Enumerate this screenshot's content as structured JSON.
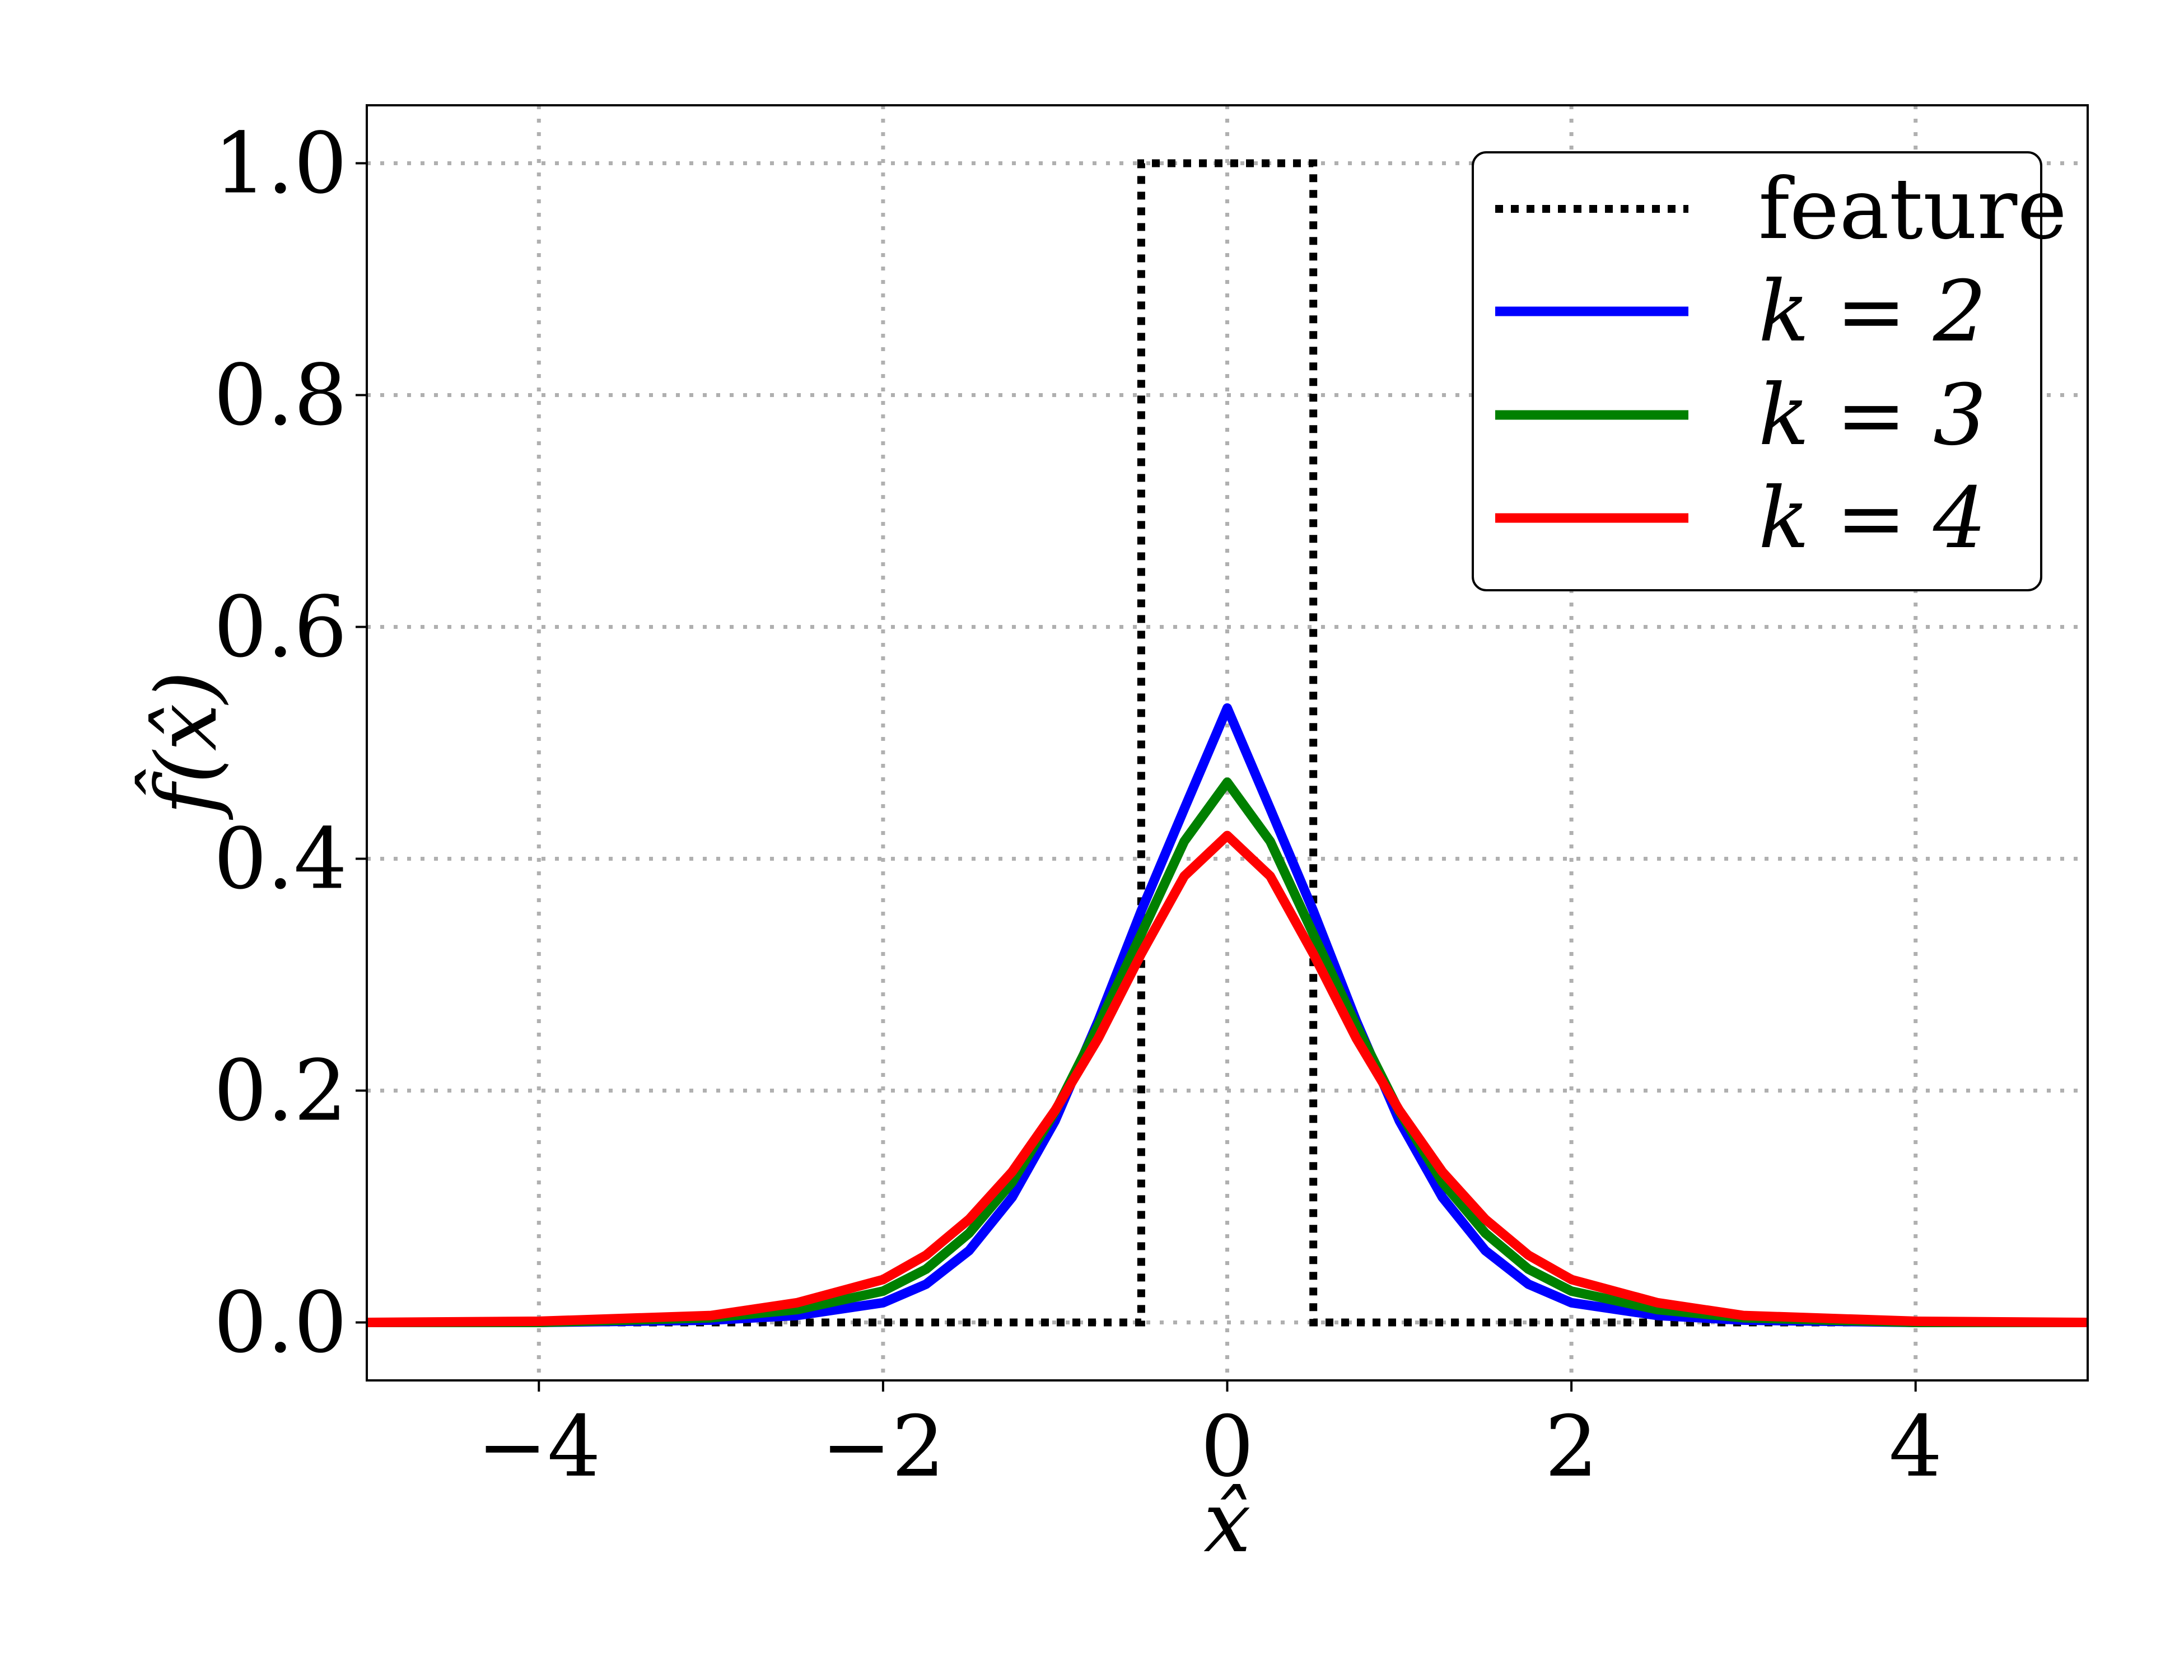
{
  "chart_data": {
    "type": "line",
    "xlabel": "x̂",
    "ylabel": "f̂(x̂)",
    "xlim": [
      -5,
      5
    ],
    "ylim": [
      -0.05,
      1.05
    ],
    "xticks": [
      -4,
      -2,
      0,
      2,
      4
    ],
    "xtick_labels": [
      "−4",
      "−2",
      "0",
      "2",
      "4"
    ],
    "yticks": [
      0.0,
      0.2,
      0.4,
      0.6,
      0.8,
      1.0
    ],
    "ytick_labels": [
      "0.0",
      "0.2",
      "0.4",
      "0.6",
      "0.8",
      "1.0"
    ],
    "grid": true,
    "legend_position": "top-right",
    "series": [
      {
        "name": "feature",
        "style": "dotted",
        "color": "#000000",
        "x": [
          -5.0,
          -0.5,
          -0.5,
          0.5,
          0.5,
          5.0
        ],
        "y": [
          0.0,
          0.0,
          1.0,
          1.0,
          0.0,
          0.0
        ]
      },
      {
        "name": "k = 2",
        "legend_var": "k",
        "legend_value": "2",
        "style": "solid",
        "color": "#0000ff",
        "x": [
          -5.0,
          -4.0,
          -3.0,
          -2.5,
          -2.0,
          -1.75,
          -1.5,
          -1.25,
          -1.0,
          -0.75,
          -0.5,
          -0.25,
          0.0,
          0.25,
          0.5,
          0.75,
          1.0,
          1.25,
          1.5,
          1.75,
          2.0,
          2.5,
          3.0,
          4.0,
          5.0
        ],
        "y": [
          0.0,
          0.0,
          0.002,
          0.006,
          0.017,
          0.033,
          0.062,
          0.108,
          0.174,
          0.26,
          0.355,
          0.443,
          0.53,
          0.443,
          0.355,
          0.26,
          0.174,
          0.108,
          0.062,
          0.033,
          0.017,
          0.006,
          0.002,
          0.0,
          0.0
        ]
      },
      {
        "name": "k = 3",
        "legend_var": "k",
        "legend_value": "3",
        "style": "solid",
        "color": "#008000",
        "x": [
          -5.0,
          -4.0,
          -3.0,
          -2.5,
          -2.0,
          -1.75,
          -1.5,
          -1.25,
          -1.0,
          -0.75,
          -0.5,
          -0.25,
          0.0,
          0.25,
          0.5,
          0.75,
          1.0,
          1.25,
          1.5,
          1.75,
          2.0,
          2.5,
          3.0,
          4.0,
          5.0
        ],
        "y": [
          0.0,
          0.0,
          0.004,
          0.011,
          0.027,
          0.046,
          0.077,
          0.121,
          0.182,
          0.256,
          0.335,
          0.415,
          0.466,
          0.415,
          0.335,
          0.256,
          0.182,
          0.121,
          0.077,
          0.046,
          0.027,
          0.011,
          0.004,
          0.0,
          0.0
        ]
      },
      {
        "name": "k = 4",
        "legend_var": "k",
        "legend_value": "4",
        "style": "solid",
        "color": "#ff0000",
        "x": [
          -5.0,
          -4.0,
          -3.0,
          -2.5,
          -2.0,
          -1.75,
          -1.5,
          -1.25,
          -1.0,
          -0.75,
          -0.5,
          -0.25,
          0.0,
          0.25,
          0.5,
          0.75,
          1.0,
          1.25,
          1.5,
          1.75,
          2.0,
          2.5,
          3.0,
          4.0,
          5.0
        ],
        "y": [
          0.0,
          0.001,
          0.006,
          0.017,
          0.037,
          0.058,
          0.089,
          0.13,
          0.183,
          0.245,
          0.318,
          0.385,
          0.42,
          0.385,
          0.318,
          0.245,
          0.183,
          0.13,
          0.089,
          0.058,
          0.037,
          0.017,
          0.006,
          0.001,
          0.0
        ]
      }
    ]
  }
}
